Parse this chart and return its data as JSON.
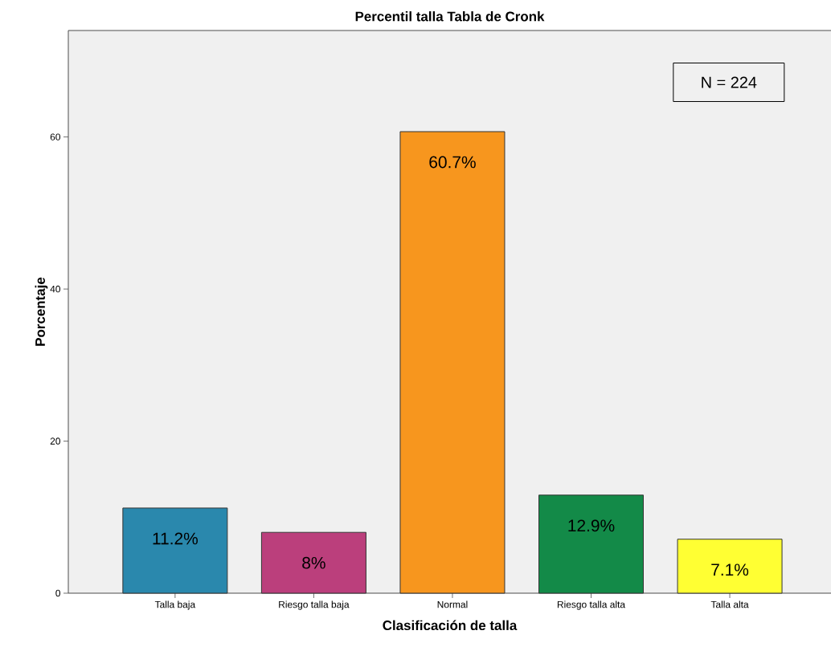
{
  "chart_data": {
    "type": "bar",
    "title": "Percentil talla Tabla de Cronk",
    "xlabel": "Clasificación de talla",
    "ylabel": "Porcentaje",
    "categories": [
      "Talla baja",
      "Riesgo talla baja",
      "Normal",
      "Riesgo talla alta",
      "Talla alta"
    ],
    "values": [
      11.2,
      8,
      60.7,
      12.9,
      7.1
    ],
    "value_labels": [
      "11.2%",
      "8%",
      "60.7%",
      "12.9%",
      "7.1%"
    ],
    "colors": [
      "#2a88ad",
      "#bb3f7c",
      "#f7961e",
      "#138a48",
      "#ffff33"
    ],
    "ylim": [
      0,
      74
    ],
    "yticks": [
      0,
      20,
      40,
      60
    ],
    "annotations": [
      "N = 224"
    ]
  }
}
